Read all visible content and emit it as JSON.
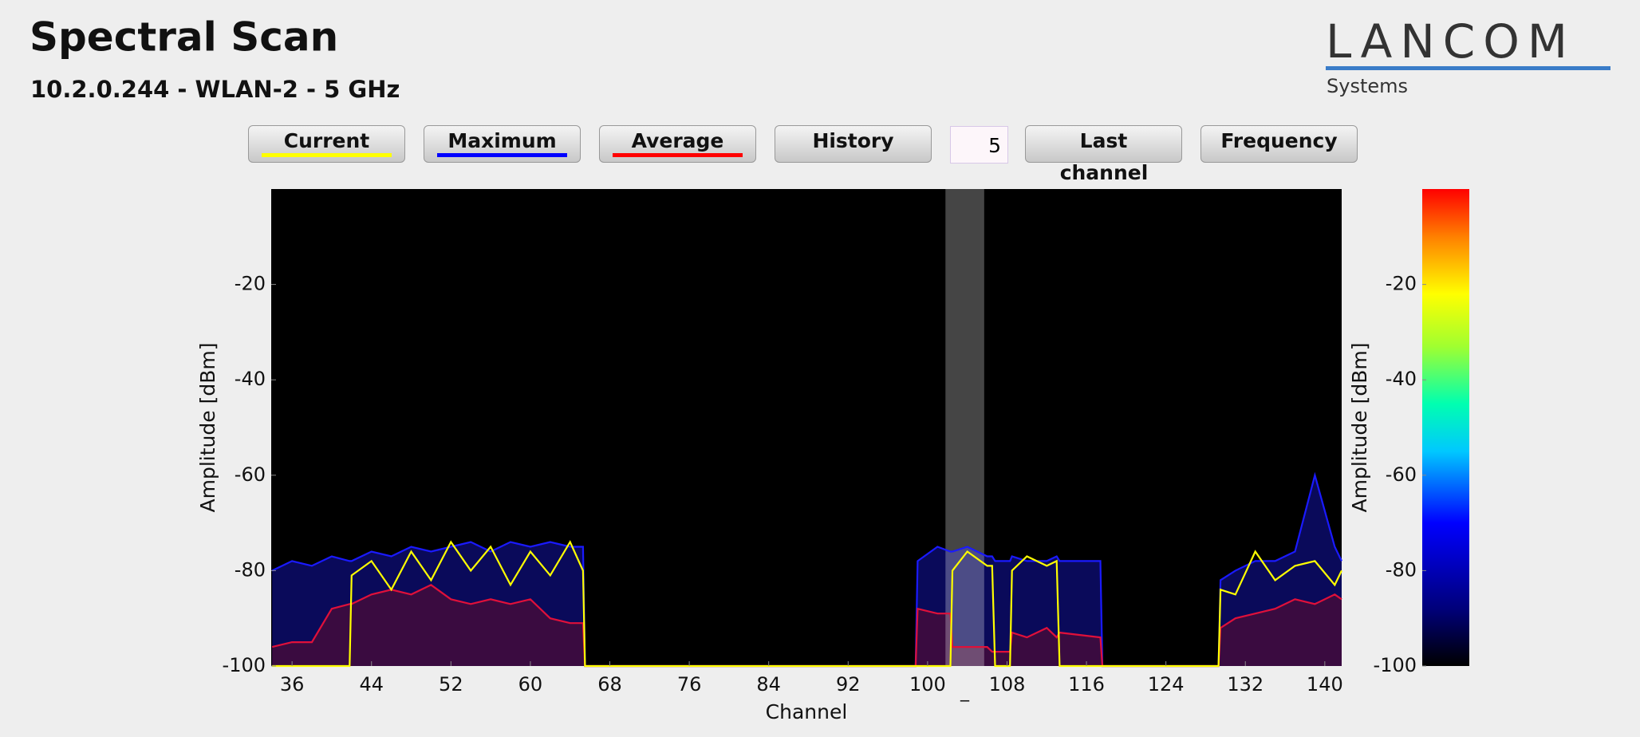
{
  "header": {
    "title": "Spectral Scan",
    "subtitle": "10.2.0.244 - WLAN-2 - 5 GHz"
  },
  "logo": {
    "name": "LANCOM",
    "tagline": "Systems"
  },
  "buttons": [
    {
      "label": "Current",
      "color": "#ffff00"
    },
    {
      "label": "Maximum",
      "color": "#0000ff"
    },
    {
      "label": "Average",
      "color": "#ff0000"
    },
    {
      "label": "History"
    }
  ],
  "history_input": "5",
  "buttons_right": [
    {
      "label": "Last",
      "sublabel": "channel"
    },
    {
      "label": "Frequency"
    }
  ],
  "chart_data": {
    "type": "line",
    "xlabel": "Channel",
    "ylabel": "Amplitude [dBm]",
    "xlim": [
      33.9,
      141.7
    ],
    "xticks": [
      36,
      44,
      52,
      60,
      68,
      76,
      84,
      92,
      100,
      108,
      116,
      124,
      132,
      140
    ],
    "ylim": [
      -100,
      0
    ],
    "yticks": [
      -20,
      -40,
      -60,
      -80,
      -100
    ],
    "highlight": {
      "range": [
        101.8,
        105.7
      ],
      "label": "_"
    },
    "x": [
      34,
      36,
      38,
      40,
      41.8,
      42,
      44,
      46,
      48,
      50,
      52,
      54,
      56,
      58,
      60,
      62,
      64,
      65.3,
      65.5,
      67,
      98.8,
      99,
      101,
      102.3,
      102.5,
      104,
      106,
      106.5,
      106.8,
      108.3,
      108.5,
      110,
      112,
      113,
      113.3,
      117.4,
      117.6,
      129.3,
      129.5,
      131,
      133,
      135,
      137,
      139,
      141,
      141.7
    ],
    "series": [
      {
        "name": "Maximum",
        "color": "#1a1aff",
        "fill": "#0a0a5a",
        "values": [
          -80,
          -78,
          -79,
          -77,
          -78,
          -78,
          -76,
          -77,
          -75,
          -76,
          -75,
          -74,
          -76,
          -74,
          -75,
          -74,
          -75,
          -75,
          -100,
          -100,
          -100,
          -78,
          -75,
          -76,
          -76,
          -75,
          -77,
          -77,
          -78,
          -78,
          -77,
          -78,
          -78,
          -77,
          -78,
          -78,
          -100,
          -100,
          -82,
          -80,
          -78,
          -78,
          -76,
          -60,
          -75,
          -78
        ]
      },
      {
        "name": "Average",
        "color": "#e0103a",
        "fill": "#3a0b40",
        "values": [
          -96,
          -95,
          -95,
          -88,
          -87,
          -87,
          -85,
          -84,
          -85,
          -83,
          -86,
          -87,
          -86,
          -87,
          -86,
          -90,
          -91,
          -91,
          -100,
          -100,
          -100,
          -88,
          -89,
          -89,
          -96,
          -96,
          -96,
          -97,
          -97,
          -97,
          -93,
          -94,
          -92,
          -94,
          -93,
          -94,
          -100,
          -100,
          -92,
          -90,
          -89,
          -88,
          -86,
          -87,
          -85,
          -86
        ]
      },
      {
        "name": "Current",
        "color": "#ffff00",
        "values": [
          -100,
          -100,
          -100,
          -100,
          -100,
          -81,
          -78,
          -84,
          -76,
          -82,
          -74,
          -80,
          -75,
          -83,
          -76,
          -81,
          -74,
          -80,
          -100,
          -100,
          -100,
          -100,
          -100,
          -100,
          -80,
          -76,
          -79,
          -79,
          -100,
          -100,
          -80,
          -77,
          -79,
          -78,
          -100,
          -100,
          -100,
          -100,
          -84,
          -85,
          -76,
          -82,
          -79,
          -78,
          -83,
          -80
        ]
      }
    ],
    "colorbar": {
      "ylim": [
        -100,
        0
      ],
      "yticks": [
        -20,
        -40,
        -60,
        -80,
        -100
      ],
      "ylabel": "Amplitude [dBm]"
    }
  }
}
